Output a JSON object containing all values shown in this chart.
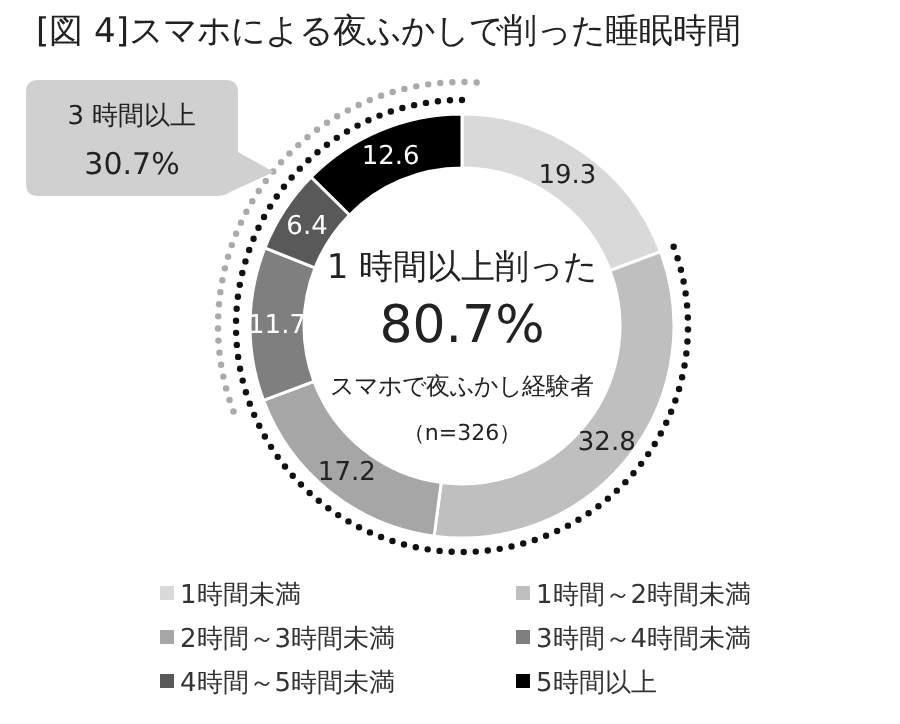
{
  "chart_data": {
    "type": "donut",
    "title": "[図 4]スマホによる夜ふかしで削った睡眠時間",
    "categories": [
      "1時間未満",
      "1時間～2時間未満",
      "2時間～3時間未満",
      "3時間～4時間未満",
      "4時間～5時間未満",
      "5時間以上"
    ],
    "values": [
      19.3,
      32.8,
      17.2,
      11.7,
      6.4,
      12.6
    ],
    "colors": [
      "#d9d9d9",
      "#bfbfbf",
      "#a6a6a6",
      "#7f7f7f",
      "#595959",
      "#000000"
    ],
    "data_labels": true,
    "legend": "bottom",
    "annotations": [
      "1 時間以上削った",
      "80.7%",
      "スマホで夜ふかし経験者",
      "（n=326）",
      "3 時間以上",
      "30.7%"
    ]
  }
}
